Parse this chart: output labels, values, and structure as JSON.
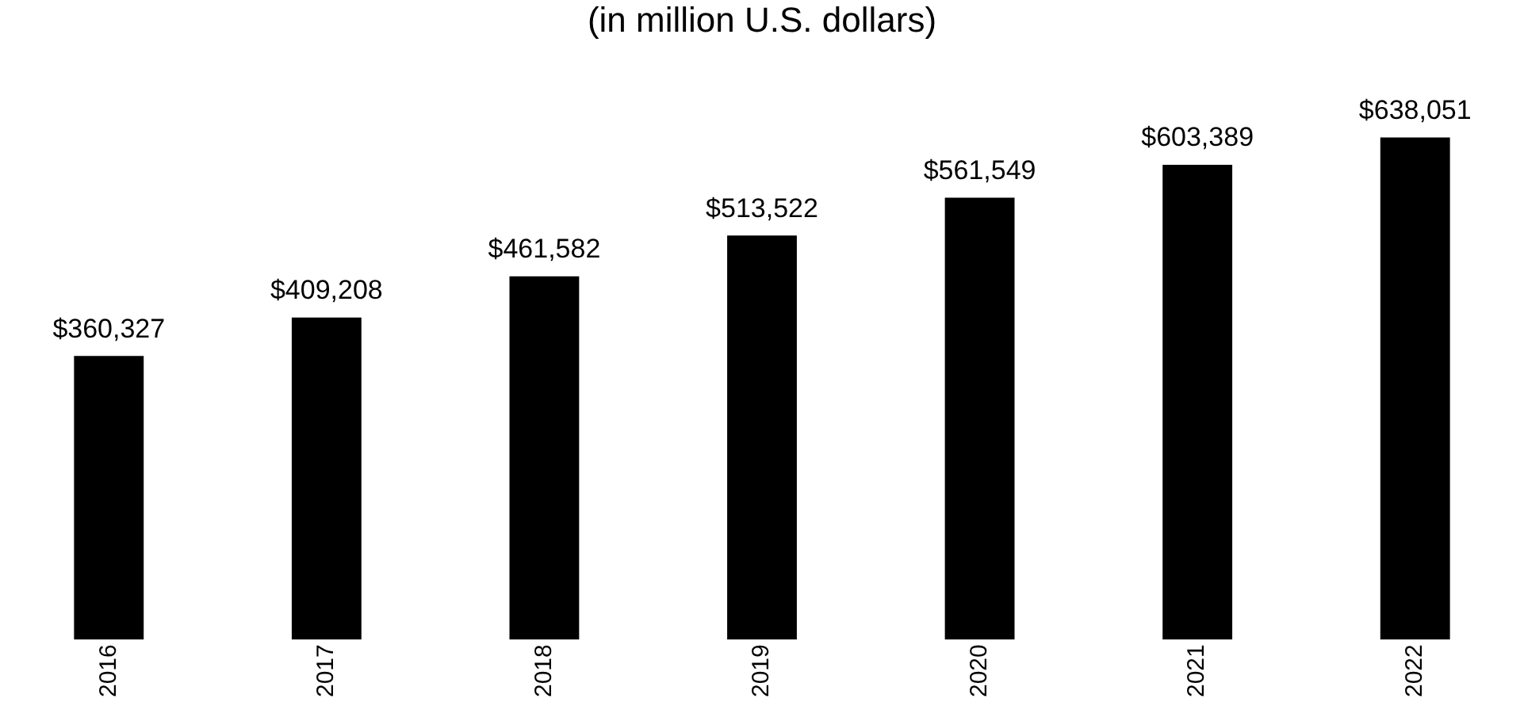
{
  "chart_data": {
    "type": "bar",
    "title": "(in million U.S. dollars)",
    "categories": [
      "2016",
      "2017",
      "2018",
      "2019",
      "2020",
      "2021",
      "2022"
    ],
    "values": [
      360327,
      409208,
      461582,
      513522,
      561549,
      603389,
      638051
    ],
    "value_labels": [
      "$360,327",
      "$409,208",
      "$461,582",
      "$513,522",
      "$561,549",
      "$603,389",
      "$638,051"
    ],
    "color": "#000000",
    "tick_labels": "x",
    "grid": false,
    "legend": false
  }
}
